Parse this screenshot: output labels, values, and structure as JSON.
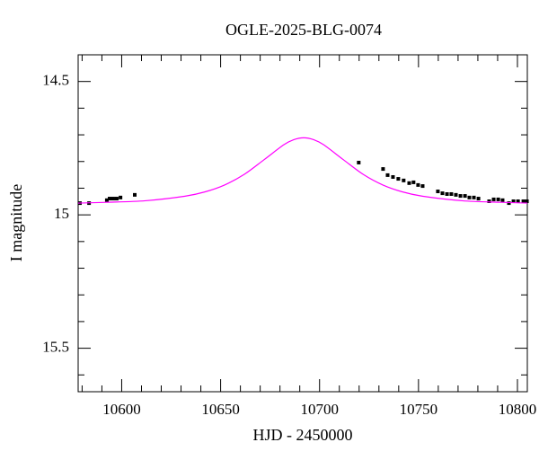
{
  "chart_data": {
    "type": "scatter",
    "title": "OGLE-2025-BLG-0074",
    "xlabel": "HJD - 2450000",
    "ylabel": "I magnitude",
    "xlim": [
      10578,
      10805
    ],
    "ylim": [
      15.663,
      14.4
    ],
    "invert_y": true,
    "xticks": [
      10600,
      10650,
      10700,
      10750,
      10800
    ],
    "xminor": [
      10580,
      10590,
      10610,
      10620,
      10630,
      10640,
      10660,
      10670,
      10680,
      10690,
      10710,
      10720,
      10730,
      10740,
      10760,
      10770,
      10780,
      10790
    ],
    "yticks": [
      14.5,
      15,
      15.5
    ],
    "yminor": [
      14.6,
      14.7,
      14.8,
      14.9,
      15.1,
      15.2,
      15.3,
      15.4,
      15.6
    ],
    "series": [
      {
        "type": "scatter",
        "color": "#000000",
        "x": [
          10578.9,
          10583.5,
          10592.5,
          10593.9,
          10595.7,
          10597.5,
          10599.4,
          10606.6,
          10719.8,
          10732.1,
          10734.4,
          10737.1,
          10739.8,
          10742.5,
          10745.3,
          10747.5,
          10749.8,
          10752.1,
          10759.8,
          10762.1,
          10764.4,
          10766.6,
          10768.9,
          10771.2,
          10773.5,
          10775.7,
          10778,
          10780.3,
          10785.7,
          10788,
          10790.3,
          10792.5,
          10795.7,
          10798,
          10800.3,
          10803,
          10804.8
        ],
        "values": [
          14.956,
          14.956,
          14.945,
          14.939,
          14.939,
          14.939,
          14.935,
          14.925,
          14.804,
          14.828,
          14.851,
          14.858,
          14.865,
          14.871,
          14.881,
          14.878,
          14.888,
          14.892,
          14.912,
          14.919,
          14.922,
          14.922,
          14.925,
          14.929,
          14.929,
          14.935,
          14.935,
          14.939,
          14.949,
          14.942,
          14.942,
          14.945,
          14.956,
          14.949,
          14.949,
          14.949,
          14.949
        ]
      },
      {
        "type": "line",
        "color": "#ff00ff",
        "x": [
          10578,
          10592,
          10612,
          10632,
          10642,
          10652,
          10662,
          10672,
          10682,
          10687,
          10692,
          10697,
          10702,
          10712,
          10722,
          10732,
          10742,
          10752,
          10772,
          10792,
          10805
        ],
        "values": [
          14.956,
          14.953,
          14.947,
          14.93,
          14.914,
          14.888,
          14.848,
          14.793,
          14.737,
          14.718,
          14.711,
          14.718,
          14.737,
          14.793,
          14.848,
          14.888,
          14.914,
          14.93,
          14.947,
          14.953,
          14.956
        ]
      }
    ]
  }
}
